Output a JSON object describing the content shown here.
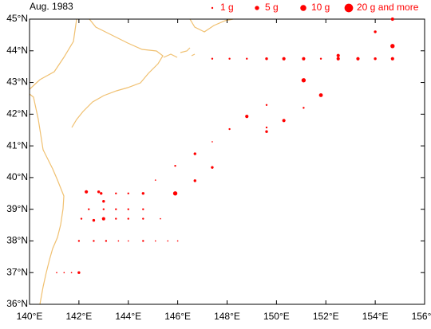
{
  "chart_data": {
    "type": "bubble",
    "title": "Aug. 1983",
    "color": "#ff0000",
    "coast_color": "#f0c070",
    "xlim": [
      140,
      156
    ],
    "ylim": [
      36,
      45
    ],
    "xticks": [
      {
        "value": 140,
        "label": "140°E"
      },
      {
        "value": 142,
        "label": "142°E"
      },
      {
        "value": 144,
        "label": "144°E"
      },
      {
        "value": 146,
        "label": "146°E"
      },
      {
        "value": 148,
        "label": "148°E"
      },
      {
        "value": 150,
        "label": "150°E"
      },
      {
        "value": 152,
        "label": "152°E"
      },
      {
        "value": 154,
        "label": "154°E"
      },
      {
        "value": 156,
        "label": "156°E"
      }
    ],
    "yticks": [
      {
        "value": 36,
        "label": "36°N"
      },
      {
        "value": 37,
        "label": "37°N"
      },
      {
        "value": 38,
        "label": "38°N"
      },
      {
        "value": 39,
        "label": "39°N"
      },
      {
        "value": 40,
        "label": "40°N"
      },
      {
        "value": 41,
        "label": "41°N"
      },
      {
        "value": 42,
        "label": "42°N"
      },
      {
        "value": 43,
        "label": "43°N"
      },
      {
        "value": 44,
        "label": "44°N"
      },
      {
        "value": 45,
        "label": "45°N"
      }
    ],
    "size_legend": [
      {
        "value": 1,
        "label": "1 g"
      },
      {
        "value": 5,
        "label": "5 g"
      },
      {
        "value": 10,
        "label": "10 g"
      },
      {
        "value": 20,
        "label": "20 g and more"
      }
    ],
    "x": [
      147.4,
      148.1,
      148.8,
      149.6,
      150.3,
      151.1,
      151.8,
      152.5,
      152.5,
      153.3,
      154.0,
      154.7,
      154.7,
      154.7,
      154.0,
      151.1,
      151.8,
      151.1,
      150.3,
      149.6,
      149.6,
      149.6,
      148.8,
      148.1,
      147.4,
      146.7,
      147.4,
      146.7,
      145.9,
      145.1,
      145.9,
      142.3,
      142.8,
      142.9,
      143.5,
      144.0,
      144.6,
      143.0,
      142.4,
      143.0,
      143.5,
      144.0,
      144.6,
      142.1,
      142.6,
      143.0,
      143.5,
      144.0,
      144.6,
      145.3,
      142.0,
      142.6,
      143.1,
      143.6,
      144.0,
      144.6,
      145.1,
      145.6,
      146.0,
      141.1,
      141.4,
      141.7,
      142.0
    ],
    "y": [
      43.75,
      43.75,
      43.75,
      43.75,
      43.75,
      43.75,
      43.75,
      43.75,
      43.85,
      43.75,
      43.75,
      43.75,
      44.15,
      45.0,
      44.6,
      43.07,
      42.6,
      42.2,
      41.8,
      42.29,
      41.58,
      41.45,
      41.93,
      41.53,
      41.13,
      40.75,
      40.32,
      39.9,
      40.37,
      39.92,
      39.5,
      39.55,
      39.55,
      39.5,
      39.5,
      39.5,
      39.5,
      39.25,
      39.0,
      39.0,
      39.0,
      39.0,
      39.0,
      38.7,
      38.65,
      38.7,
      38.7,
      38.7,
      38.7,
      38.7,
      38.0,
      38.0,
      38.0,
      38.0,
      38.0,
      38.0,
      38.0,
      38.0,
      38.0,
      37.0,
      37.0,
      37.0,
      37.0
    ],
    "sizes": [
      1,
      1,
      1,
      2,
      3,
      3,
      1,
      3,
      3,
      3,
      2,
      3,
      5,
      3,
      2,
      5,
      4,
      1,
      3,
      1,
      1,
      2,
      3,
      1,
      0.5,
      2,
      2,
      2,
      1,
      0.5,
      5,
      3,
      2,
      2,
      1,
      1,
      2,
      2,
      1,
      1,
      1,
      1,
      1,
      1,
      2,
      3,
      1,
      1,
      1,
      0.5,
      1,
      1,
      1,
      0.5,
      0.5,
      1,
      0.5,
      0.5,
      0.5,
      0.5,
      0.5,
      0.5,
      2
    ]
  }
}
